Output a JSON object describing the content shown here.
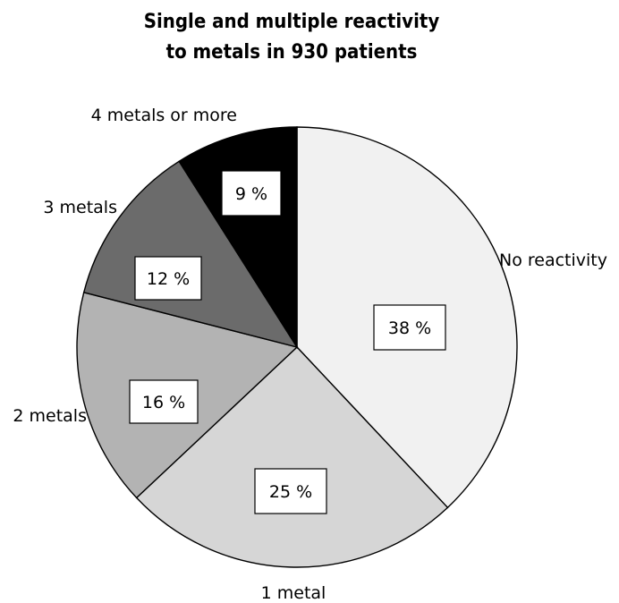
{
  "chart_data": {
    "type": "pie",
    "title": [
      "Single and multiple reactivity",
      "to metals in 930 patients"
    ],
    "slices": [
      {
        "label": "No reactivity",
        "value": 38,
        "value_label": "38 %",
        "color": "#f1f1f1"
      },
      {
        "label": "1 metal",
        "value": 25,
        "value_label": "25 %",
        "color": "#d6d6d6"
      },
      {
        "label": "2 metals",
        "value": 16,
        "value_label": "16 %",
        "color": "#b3b3b3"
      },
      {
        "label": "3 metals",
        "value": 12,
        "value_label": "12 %",
        "color": "#6b6b6b"
      },
      {
        "label": "4 metals or more",
        "value": 9,
        "value_label": "9 %",
        "color": "#000000"
      }
    ],
    "start_angle": "12 o'clock",
    "direction": "clockwise",
    "legend": "none (outside slice labels)"
  }
}
